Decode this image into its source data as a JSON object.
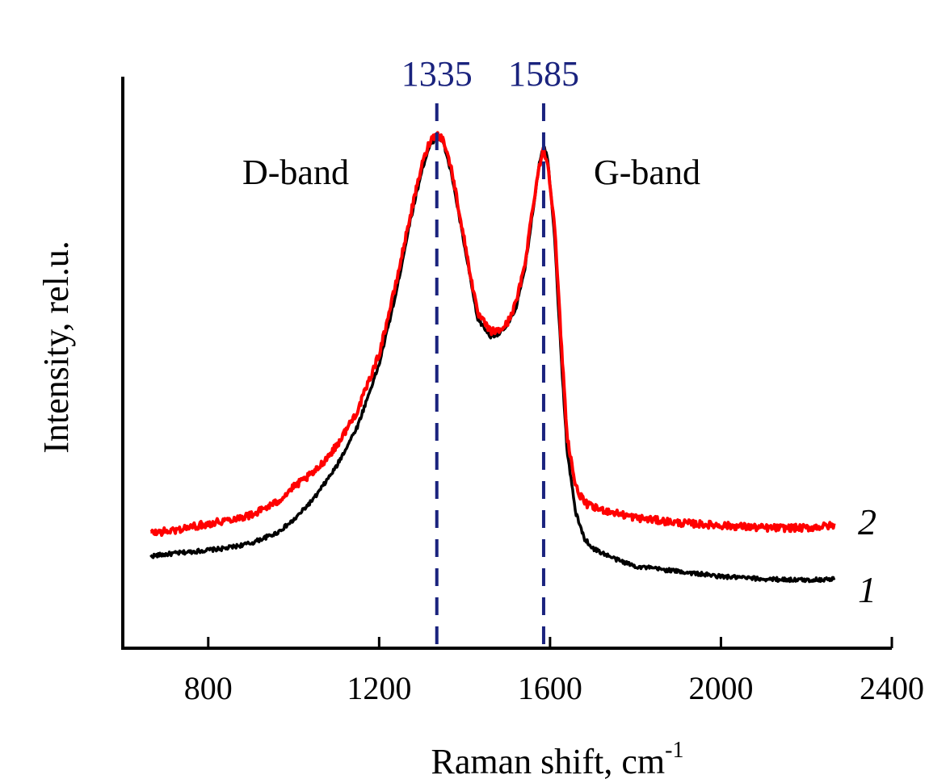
{
  "chart_data": {
    "type": "line",
    "title": "",
    "xlabel": "Raman shift, cm",
    "xlabel_sup": "-1",
    "ylabel": "Intensity, rel.u.",
    "xlim": [
      600,
      2400
    ],
    "ylim": [
      0,
      1
    ],
    "x_ticks": [
      800,
      1200,
      1600,
      2000,
      2400
    ],
    "x_tick_labels": [
      "800",
      "1200",
      "1600",
      "2000",
      "2400"
    ],
    "y_ticks_shown": false,
    "grid": false,
    "colors": {
      "peak_marker": "#1a237e",
      "series_1": "#000000",
      "series_2": "#ff0000"
    },
    "peak_markers": [
      {
        "x": 1335,
        "label": "1335"
      },
      {
        "x": 1585,
        "label": "1585"
      }
    ],
    "annotations": [
      {
        "text": "D-band",
        "x": 1000,
        "y": 0.9
      },
      {
        "text": "G-band",
        "x": 1780,
        "y": 0.9
      }
    ],
    "series": [
      {
        "name": "1",
        "label": "1",
        "color": "#000000",
        "x": [
          665,
          720,
          780,
          840,
          900,
          960,
          1000,
          1050,
          1100,
          1150,
          1200,
          1240,
          1270,
          1300,
          1320,
          1335,
          1350,
          1370,
          1400,
          1430,
          1460,
          1480,
          1500,
          1520,
          1540,
          1560,
          1575,
          1585,
          1595,
          1610,
          1625,
          1640,
          1660,
          1680,
          1700,
          1750,
          1800,
          1900,
          2000,
          2100,
          2200,
          2265
        ],
        "y": [
          0.165,
          0.17,
          0.175,
          0.18,
          0.19,
          0.21,
          0.235,
          0.28,
          0.34,
          0.42,
          0.54,
          0.68,
          0.81,
          0.92,
          0.97,
          0.985,
          0.975,
          0.91,
          0.77,
          0.63,
          0.595,
          0.6,
          0.615,
          0.65,
          0.72,
          0.84,
          0.935,
          0.97,
          0.94,
          0.8,
          0.57,
          0.37,
          0.25,
          0.2,
          0.18,
          0.16,
          0.145,
          0.135,
          0.125,
          0.12,
          0.118,
          0.12
        ]
      },
      {
        "name": "2",
        "label": "2",
        "color": "#ff0000",
        "x": [
          665,
          720,
          780,
          840,
          900,
          960,
          1000,
          1050,
          1100,
          1150,
          1200,
          1240,
          1270,
          1300,
          1320,
          1335,
          1350,
          1370,
          1400,
          1430,
          1460,
          1480,
          1500,
          1520,
          1540,
          1560,
          1575,
          1585,
          1595,
          1610,
          1625,
          1640,
          1660,
          1680,
          1700,
          1750,
          1800,
          1900,
          2000,
          2100,
          2200,
          2265
        ],
        "y": [
          0.21,
          0.215,
          0.225,
          0.235,
          0.245,
          0.27,
          0.3,
          0.33,
          0.38,
          0.45,
          0.56,
          0.7,
          0.82,
          0.93,
          0.98,
          0.99,
          0.98,
          0.92,
          0.78,
          0.64,
          0.605,
          0.605,
          0.62,
          0.66,
          0.73,
          0.85,
          0.93,
          0.96,
          0.93,
          0.82,
          0.6,
          0.4,
          0.3,
          0.27,
          0.26,
          0.25,
          0.24,
          0.23,
          0.225,
          0.22,
          0.22,
          0.225
        ]
      }
    ]
  }
}
